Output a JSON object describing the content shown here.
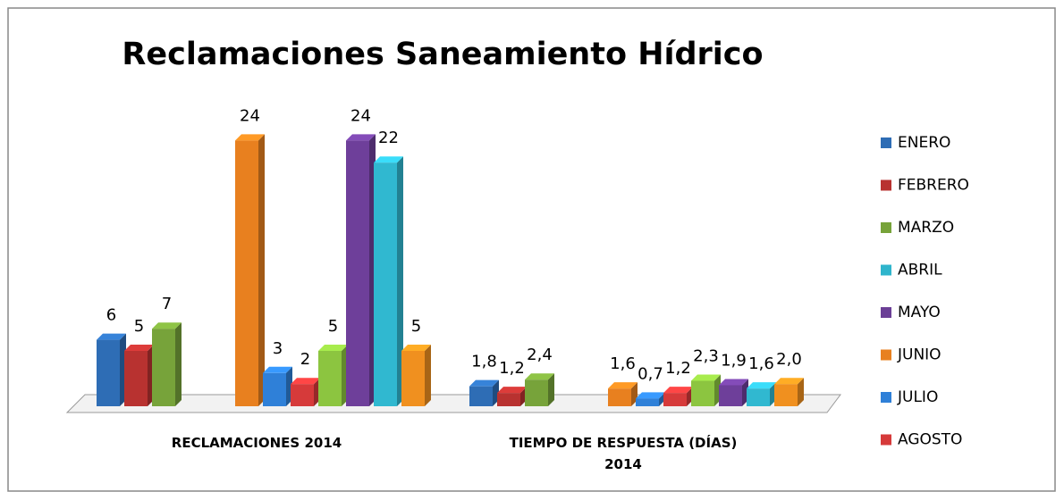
{
  "chart_data": {
    "type": "bar3d",
    "title": "Reclamaciones Saneamiento Hídrico",
    "categories": [
      "RECLAMACIONES 2014",
      "TIEMPO DE RESPUESTA (DÍAS) 2014"
    ],
    "series": [
      {
        "name": "ENERO",
        "color": "#2e6db5",
        "values": [
          6,
          1.8
        ],
        "value_labels": [
          "6",
          "1,8"
        ]
      },
      {
        "name": "FEBRERO",
        "color": "#b83230",
        "values": [
          5,
          1.2
        ],
        "value_labels": [
          "5",
          "1,2"
        ]
      },
      {
        "name": "MARZO",
        "color": "#77a33a",
        "values": [
          7,
          2.4
        ],
        "value_labels": [
          "7",
          "2,4"
        ]
      },
      {
        "name": "ABRIL",
        "color": "#2fb5cc",
        "values": [
          null,
          null
        ],
        "value_labels": [
          null,
          null
        ]
      },
      {
        "name": "MAYO",
        "color": "#6b3f96",
        "values": [
          null,
          null
        ],
        "value_labels": [
          null,
          null
        ]
      },
      {
        "name": "JUNIO",
        "color": "#e8801f",
        "values": [
          24,
          1.6
        ],
        "value_labels": [
          "24",
          "1,6"
        ]
      },
      {
        "name": "JULIO",
        "color": "#2f80d8",
        "values": [
          3,
          0.7
        ],
        "value_labels": [
          "3",
          "0,7"
        ]
      },
      {
        "name": "AGOSTO",
        "color": "#d63a3a",
        "values": [
          2,
          1.2
        ],
        "value_labels": [
          "2",
          "1,2"
        ]
      },
      {
        "name": null,
        "color": "#8cc540",
        "values": [
          5,
          2.3
        ],
        "value_labels": [
          "5",
          "2,3"
        ]
      },
      {
        "name": null,
        "color": "#6e3f9a",
        "values": [
          24,
          1.9
        ],
        "value_labels": [
          "24",
          "1,9"
        ]
      },
      {
        "name": null,
        "color": "#30b8d0",
        "values": [
          22,
          1.6
        ],
        "value_labels": [
          "22",
          "1,6"
        ]
      },
      {
        "name": null,
        "color": "#f0901f",
        "values": [
          5,
          2.0
        ],
        "value_labels": [
          "5",
          "2,0"
        ]
      }
    ],
    "legend": "right"
  }
}
